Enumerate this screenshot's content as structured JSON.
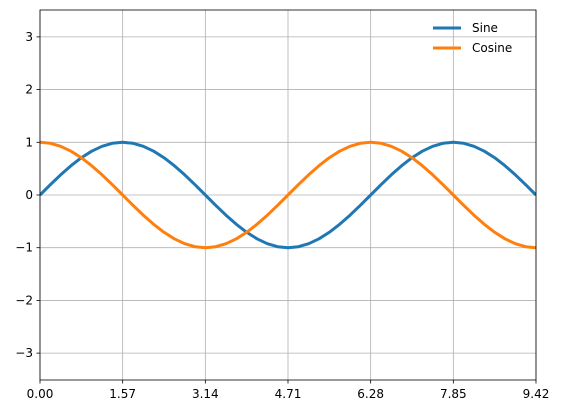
{
  "chart_data": {
    "type": "line",
    "x": [
      0,
      0.1963,
      0.3927,
      0.589,
      0.7854,
      0.9817,
      1.1781,
      1.3744,
      1.5708,
      1.7671,
      1.9635,
      2.1598,
      2.3562,
      2.5525,
      2.7489,
      2.9452,
      3.1416,
      3.3379,
      3.5343,
      3.7306,
      3.927,
      4.1233,
      4.3197,
      4.516,
      4.7124,
      4.9087,
      5.1051,
      5.3014,
      5.4978,
      5.6941,
      5.8905,
      6.0868,
      6.2832,
      6.4795,
      6.6759,
      6.8722,
      7.0686,
      7.2649,
      7.4613,
      7.6576,
      7.854,
      8.0503,
      8.2467,
      8.443,
      8.6394,
      8.8357,
      9.0321,
      9.2284,
      9.4248
    ],
    "series": [
      {
        "name": "Sine",
        "color": "#1f77b4",
        "values": [
          0,
          0.195,
          0.383,
          0.556,
          0.707,
          0.831,
          0.924,
          0.981,
          1,
          0.981,
          0.924,
          0.831,
          0.707,
          0.556,
          0.383,
          0.195,
          0,
          -0.195,
          -0.383,
          -0.556,
          -0.707,
          -0.831,
          -0.924,
          -0.981,
          -1,
          -0.981,
          -0.924,
          -0.831,
          -0.707,
          -0.556,
          -0.383,
          -0.195,
          0,
          0.195,
          0.383,
          0.556,
          0.707,
          0.831,
          0.924,
          0.981,
          1,
          0.981,
          0.924,
          0.831,
          0.707,
          0.556,
          0.383,
          0.195,
          0
        ]
      },
      {
        "name": "Cosine",
        "color": "#ff7f0e",
        "values": [
          1,
          0.981,
          0.924,
          0.831,
          0.707,
          0.556,
          0.383,
          0.195,
          0,
          -0.195,
          -0.383,
          -0.556,
          -0.707,
          -0.831,
          -0.924,
          -0.981,
          -1,
          -0.981,
          -0.924,
          -0.831,
          -0.707,
          -0.556,
          -0.383,
          -0.195,
          0,
          0.195,
          0.383,
          0.556,
          0.707,
          0.831,
          0.924,
          0.981,
          1,
          0.981,
          0.924,
          0.831,
          0.707,
          0.556,
          0.383,
          0.195,
          0,
          -0.195,
          -0.383,
          -0.556,
          -0.707,
          -0.831,
          -0.924,
          -0.981,
          -1
        ]
      }
    ],
    "xlim": [
      0,
      9.4248
    ],
    "ylim": [
      -3.51,
      3.51
    ],
    "xticks": [
      {
        "value": 0,
        "label": "0.00"
      },
      {
        "value": 1.5708,
        "label": "1.57"
      },
      {
        "value": 3.1416,
        "label": "3.14"
      },
      {
        "value": 4.7124,
        "label": "4.71"
      },
      {
        "value": 6.2832,
        "label": "6.28"
      },
      {
        "value": 7.854,
        "label": "7.85"
      },
      {
        "value": 9.4248,
        "label": "9.42"
      }
    ],
    "yticks": [
      {
        "value": -3,
        "label": "−3"
      },
      {
        "value": -2,
        "label": "−2"
      },
      {
        "value": -1,
        "label": "−1"
      },
      0,
      1,
      2,
      3
    ],
    "grid": true,
    "legend": "upper right"
  }
}
